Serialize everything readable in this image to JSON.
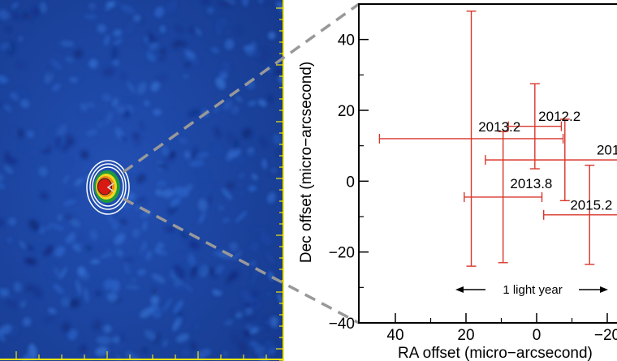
{
  "chart_data": [
    {
      "type": "heatmap",
      "panel": "radio-image",
      "title": "",
      "description_text": "",
      "colors": {
        "background": "#1a3f9c",
        "frame": "#f2e60c",
        "contour_outer": "#ffffff",
        "contour_green": "#1f9a3c",
        "contour_yellow": "#f0d81c",
        "contour_orange": "#f08a1a",
        "core": "#d81a12"
      }
    },
    {
      "type": "scatter",
      "panel": "position-offsets",
      "title": "",
      "xlabel": "RA offset (micro−arcsecond)",
      "ylabel": "Dec offset (micro−arcsecond)",
      "xlim": [
        52,
        -23
      ],
      "ylim": [
        -40,
        50
      ],
      "xticks": [
        40,
        20,
        0,
        -20
      ],
      "xtick_labels": [
        "40",
        "20",
        "0",
        "−20"
      ],
      "yticks": [
        40,
        20,
        0,
        -20,
        -40
      ],
      "ytick_labels": [
        "40",
        "20",
        "0",
        "−20",
        "−40"
      ],
      "marker_color": "#d9362b",
      "points": [
        {
          "label": "",
          "x": 18.5,
          "y": 12,
          "xerr": 26,
          "yerr": 36
        },
        {
          "label": "",
          "x": 9.5,
          "y": -4.5,
          "xerr": 11,
          "yerr": 18.5
        },
        {
          "label": "",
          "x": 0.5,
          "y": 15.5,
          "xerr": 7.5,
          "yerr": 12
        },
        {
          "label": "",
          "x": -8,
          "y": 6,
          "xerr": 22.5,
          "yerr": 11.5
        },
        {
          "label": "",
          "x": -15,
          "y": -9.5,
          "xerr": 13,
          "yerr": 14
        }
      ],
      "annotations": [
        {
          "text": "2012.2",
          "x": -0.5,
          "y": 17
        },
        {
          "text": "2013.2",
          "x": 16.5,
          "y": 14
        },
        {
          "text": "201",
          "x": -17,
          "y": 7.5
        },
        {
          "text": "2013.8",
          "x": 7.5,
          "y": -2
        },
        {
          "text": "2015.2",
          "x": -9.5,
          "y": -8
        }
      ],
      "scale_bar_label": "1 light year"
    }
  ]
}
